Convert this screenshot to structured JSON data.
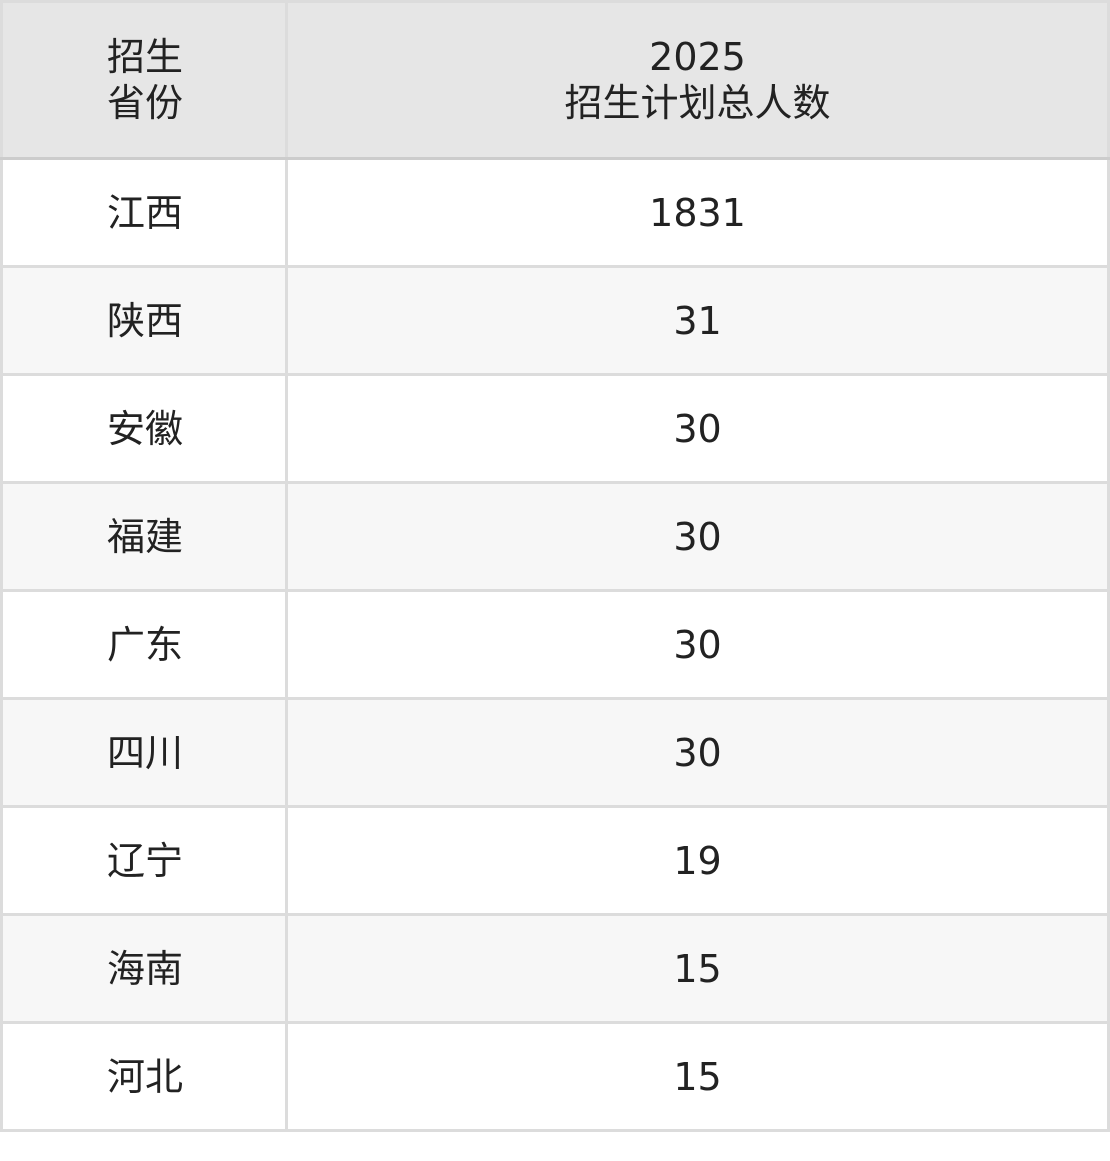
{
  "table": {
    "headers": [
      {
        "line1": "招生",
        "line2": "省份"
      },
      {
        "line1": "2025",
        "line2": "招生计划总人数"
      }
    ],
    "rows": [
      {
        "province": "江西",
        "count": "1831"
      },
      {
        "province": "陕西",
        "count": "31"
      },
      {
        "province": "安徽",
        "count": "30"
      },
      {
        "province": "福建",
        "count": "30"
      },
      {
        "province": "广东",
        "count": "30"
      },
      {
        "province": "四川",
        "count": "30"
      },
      {
        "province": "辽宁",
        "count": "19"
      },
      {
        "province": "海南",
        "count": "15"
      },
      {
        "province": "河北",
        "count": "15"
      }
    ]
  }
}
